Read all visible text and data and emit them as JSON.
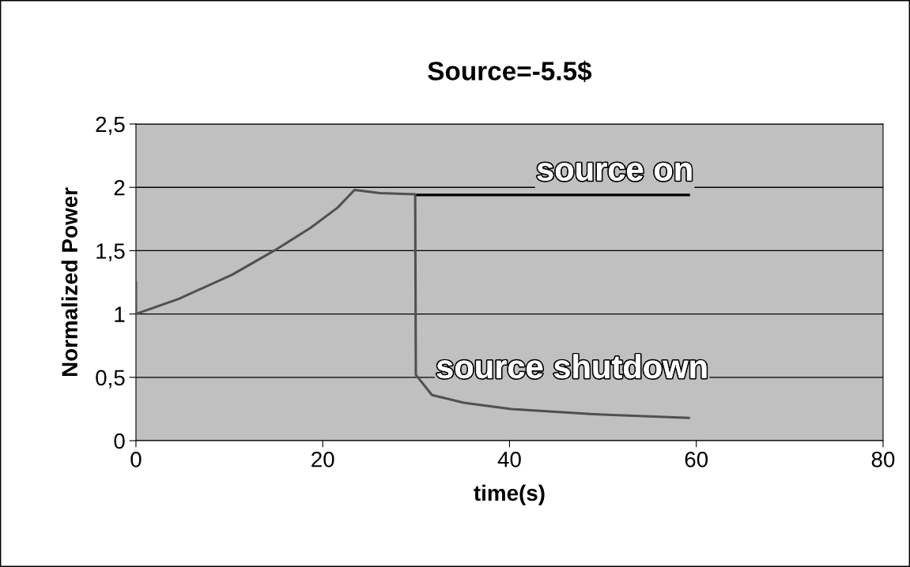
{
  "chart_data": {
    "type": "line",
    "title": "Source=-5.5$",
    "xlabel": "time(s)",
    "ylabel": "Normalized Power",
    "series": [
      {
        "name": "source on",
        "color": "#000000",
        "x": [
          30.0,
          40.0,
          50.0,
          59.2
        ],
        "values": [
          1.94,
          1.94,
          1.94,
          1.94
        ]
      },
      {
        "name": "source shutdown",
        "color": "#505050",
        "x": [
          0,
          0,
          4.6,
          10.3,
          14.8,
          18.7,
          21.6,
          23.4,
          26.1,
          29.9,
          29.97,
          31.7,
          35.1,
          40.2,
          48.7,
          59.2
        ],
        "values": [
          1.25,
          1.0,
          1.12,
          1.31,
          1.5,
          1.68,
          1.84,
          1.98,
          1.955,
          1.945,
          0.52,
          0.36,
          0.3,
          0.25,
          0.21,
          0.18
        ]
      }
    ],
    "xlim": [
      0,
      80
    ],
    "xticks": [
      0,
      20,
      40,
      60,
      80
    ],
    "ylim": [
      0,
      2.5
    ],
    "yticks": [
      0,
      {
        "value": 0.5,
        "label": "0,5"
      },
      1,
      {
        "value": 1.5,
        "label": "1,5"
      },
      2,
      {
        "value": 2.5,
        "label": "2,5"
      }
    ],
    "grid": "y",
    "legend": false,
    "marker": "none",
    "line_style": "solid"
  }
}
